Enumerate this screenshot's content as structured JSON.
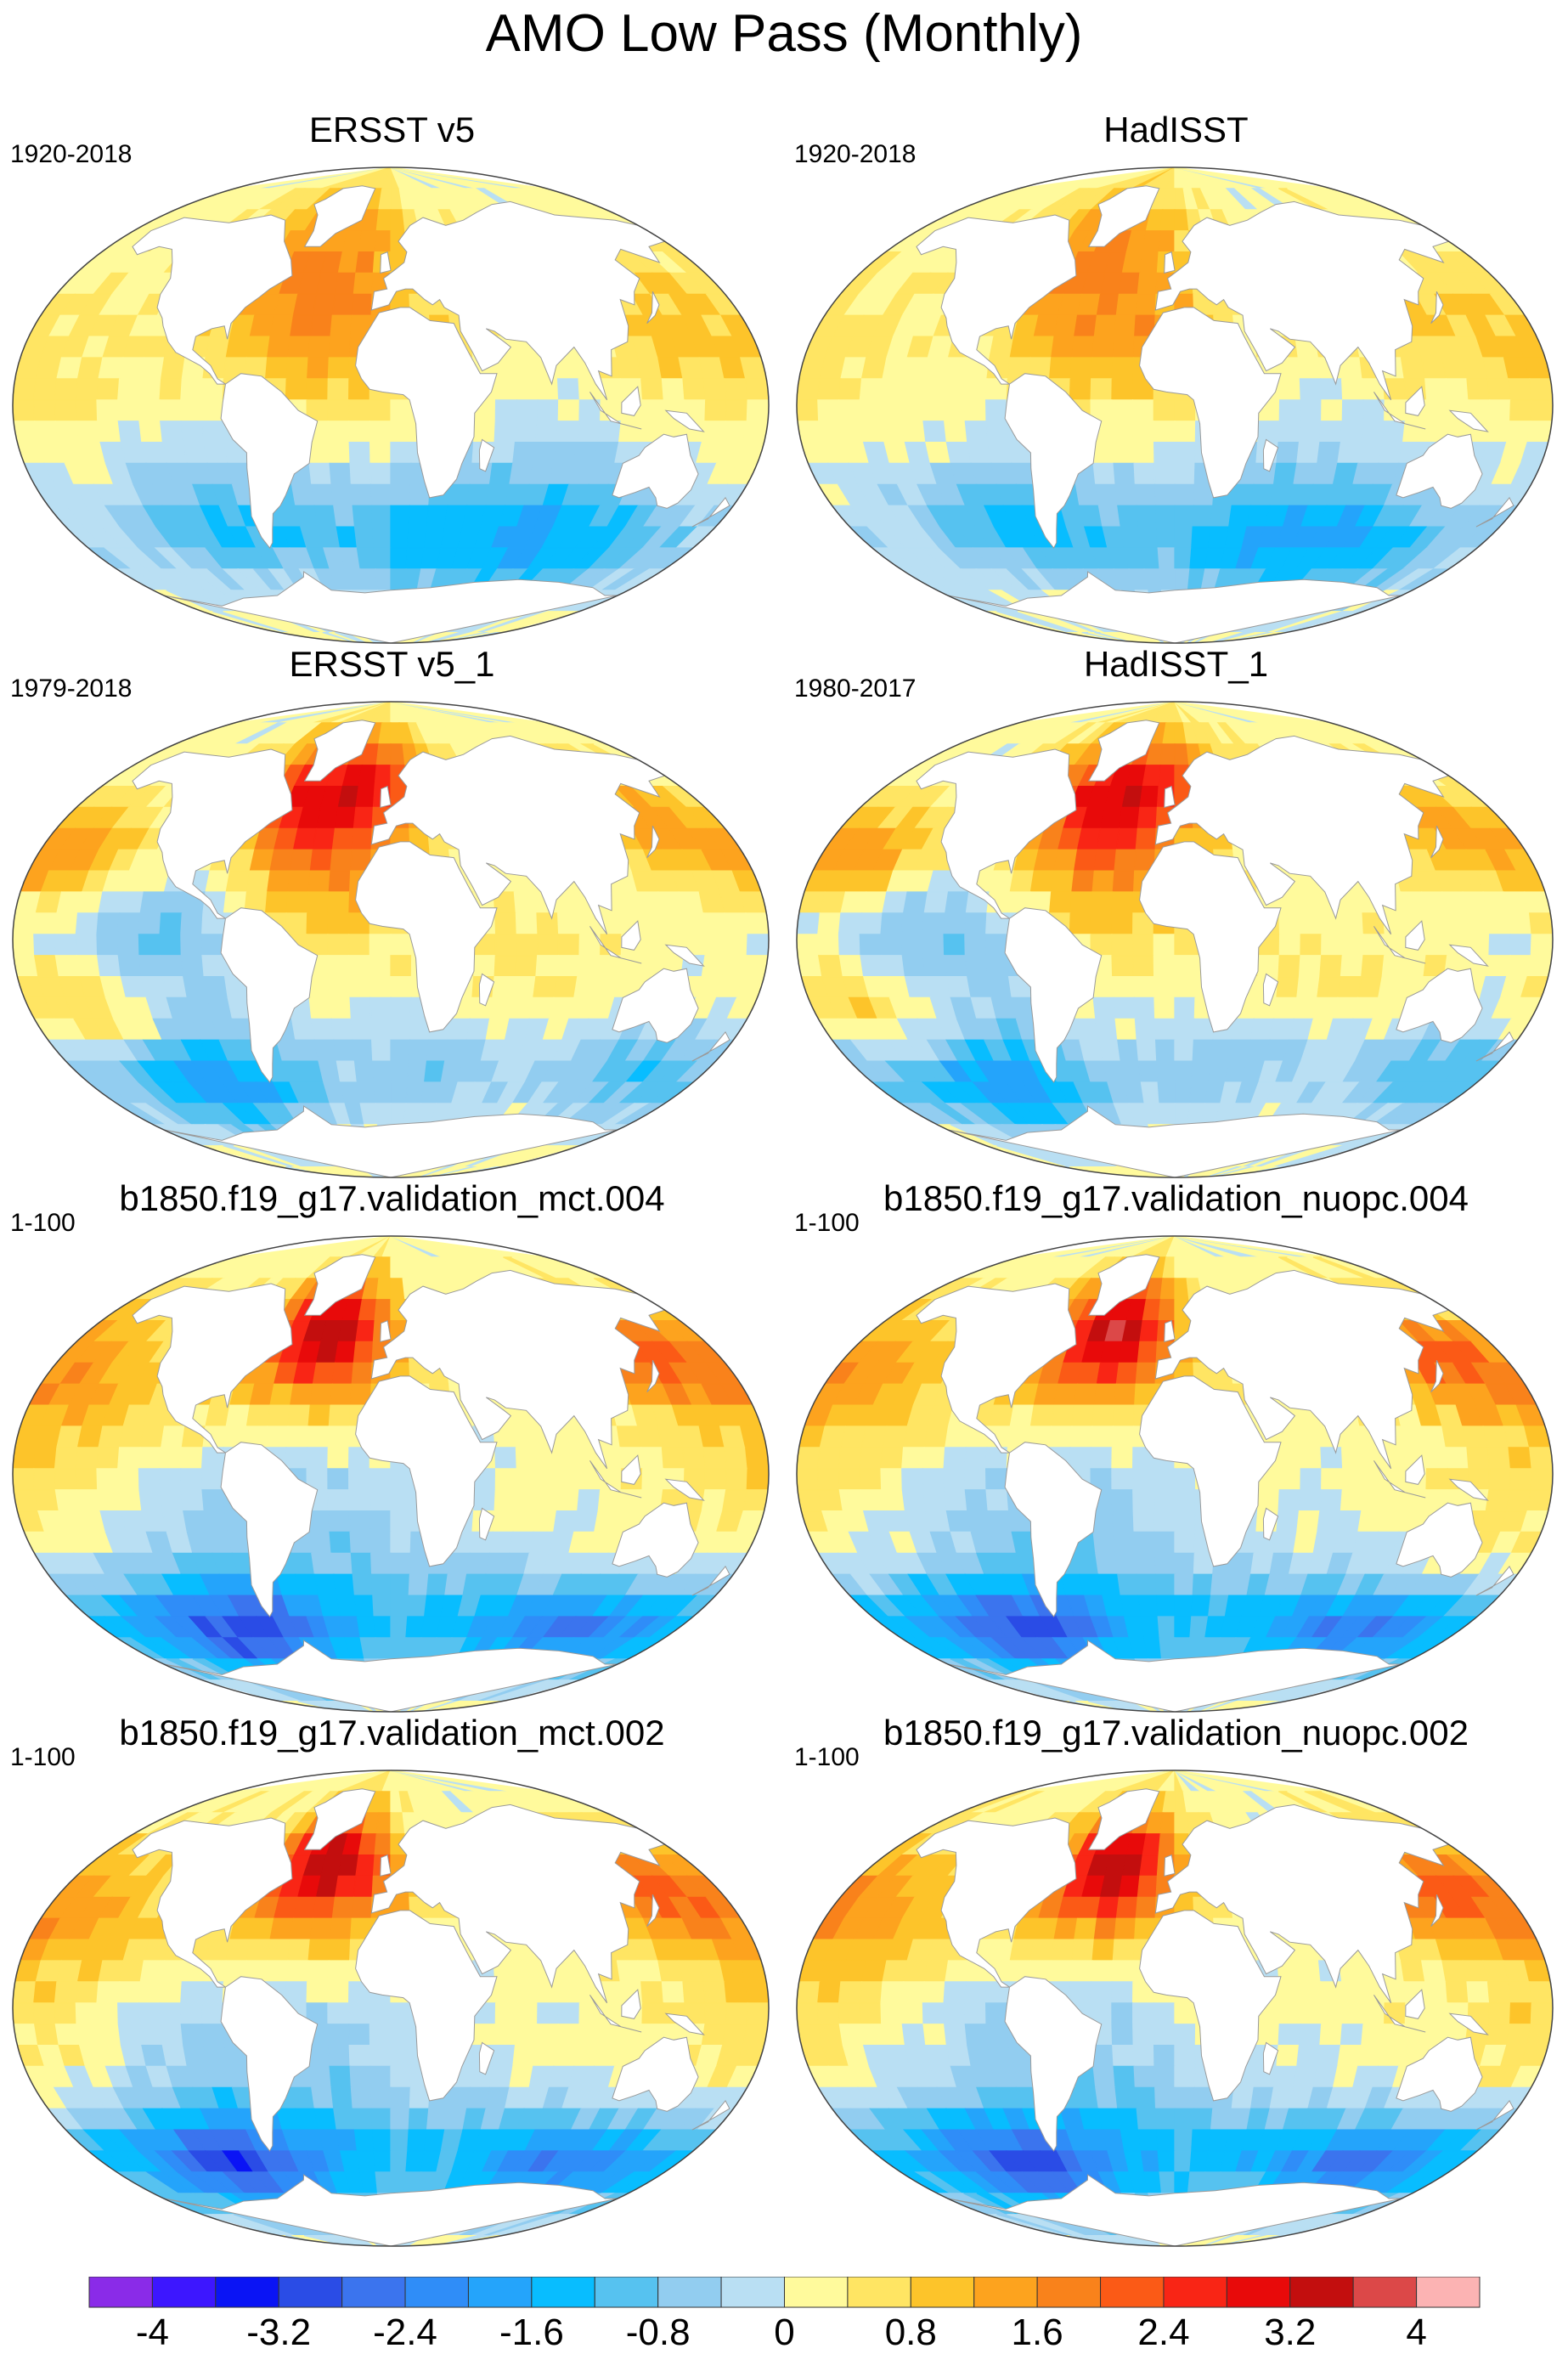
{
  "title": "AMO Low Pass (Monthly)",
  "panels": [
    {
      "title": "ERSST v5",
      "period": "1920-2018",
      "style": "obs",
      "seed": 11
    },
    {
      "title": "HadISST",
      "period": "1920-2018",
      "style": "obs",
      "seed": 23
    },
    {
      "title": "ERSST v5_1",
      "period": "1979-2018",
      "style": "recent",
      "seed": 37
    },
    {
      "title": "HadISST_1",
      "period": "1980-2017",
      "style": "recent",
      "seed": 41
    },
    {
      "title": "b1850.f19_g17.validation_mct.004",
      "period": "1-100",
      "style": "model",
      "seed": 53
    },
    {
      "title": "b1850.f19_g17.validation_nuopc.004",
      "period": "1-100",
      "style": "model",
      "seed": 67
    },
    {
      "title": "b1850.f19_g17.validation_mct.002",
      "period": "1-100",
      "style": "model",
      "seed": 71
    },
    {
      "title": "b1850.f19_g17.validation_nuopc.002",
      "period": "1-100",
      "style": "model",
      "seed": 89
    }
  ],
  "colorbar": {
    "colors": [
      "#8a2be8",
      "#3d16ff",
      "#0a14f5",
      "#2a4ce6",
      "#3b74ee",
      "#2f8df8",
      "#24a4fb",
      "#08bdff",
      "#56c2f0",
      "#92cdf0",
      "#b9dff3",
      "#fffa9c",
      "#ffe563",
      "#fdc42a",
      "#fda31e",
      "#f9821b",
      "#fb5a16",
      "#f92515",
      "#e80a0a",
      "#c30e0e",
      "#dc4848",
      "#fcb3b3"
    ],
    "labels": [
      "-4",
      "-3.2",
      "-2.4",
      "-1.6",
      "-0.8",
      "0",
      "0.8",
      "1.6",
      "2.4",
      "3.2",
      "4"
    ]
  }
}
